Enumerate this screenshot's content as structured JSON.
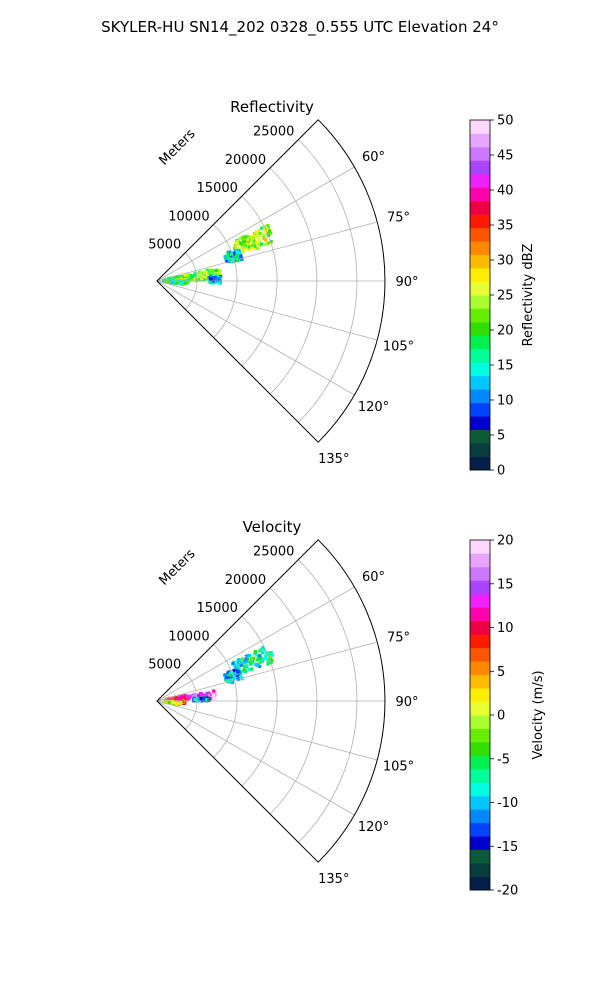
{
  "figure": {
    "suptitle": "SKYLER-HU  SN14_202  0328_0.555 UTC Elevation 24°"
  },
  "chart_data": [
    {
      "type": "heatmap",
      "projection": "polar-sector",
      "title": "Reflectivity",
      "range_label": "Meters",
      "range_ticks": [
        5000,
        10000,
        15000,
        20000,
        25000
      ],
      "azimuth_ticks": [
        "60°",
        "75°",
        "90°",
        "105°",
        "120°",
        "135°"
      ],
      "azimuth_range_deg": [
        45,
        135
      ],
      "range_max_m": 28500,
      "grid": true,
      "colorbar": {
        "label": "Reflectivity dBZ",
        "min": 0,
        "max": 50,
        "ticks": [
          0,
          5,
          10,
          15,
          20,
          25,
          30,
          35,
          40,
          45,
          50
        ],
        "colors": [
          "#04204a",
          "#073d3d",
          "#0c5a37",
          "#0000cc",
          "#0044ff",
          "#0088ff",
          "#00c8ff",
          "#00ffe0",
          "#00ff99",
          "#00f050",
          "#33dd00",
          "#66ee00",
          "#aaff33",
          "#e5ff33",
          "#ffee00",
          "#ffbb00",
          "#ff8800",
          "#ff5500",
          "#ff1a00",
          "#ee0044",
          "#ff00aa",
          "#ee22ff",
          "#aa44ff",
          "#cc77ff",
          "#e6a6ff",
          "#ffd6ff"
        ]
      },
      "echo_regions": [
        {
          "az_deg": [
            63,
            72
          ],
          "range_m": [
            10500,
            15500
          ],
          "dominant_dbz": 24
        },
        {
          "az_deg": [
            68,
            76
          ],
          "range_m": [
            9000,
            11000
          ],
          "dominant_dbz": 14
        },
        {
          "az_deg": [
            78,
            90
          ],
          "range_m": [
            1000,
            8000
          ],
          "dominant_dbz": 22
        },
        {
          "az_deg": [
            86,
            92
          ],
          "range_m": [
            6500,
            8000
          ],
          "dominant_dbz": 12
        },
        {
          "az_deg": [
            90,
            97
          ],
          "range_m": [
            800,
            4000
          ],
          "dominant_dbz": 17
        }
      ]
    },
    {
      "type": "heatmap",
      "projection": "polar-sector",
      "title": "Velocity",
      "range_label": "Meters",
      "range_ticks": [
        5000,
        10000,
        15000,
        20000,
        25000
      ],
      "azimuth_ticks": [
        "60°",
        "75°",
        "90°",
        "105°",
        "120°",
        "135°"
      ],
      "azimuth_range_deg": [
        45,
        135
      ],
      "range_max_m": 28500,
      "grid": true,
      "colorbar": {
        "label": "Velocity (m/s)",
        "min": -20,
        "max": 20,
        "ticks": [
          -20,
          -15,
          -10,
          -5,
          0,
          5,
          10,
          15,
          20
        ],
        "colors": [
          "#04204a",
          "#073d3d",
          "#0c5a37",
          "#0000cc",
          "#0044ff",
          "#0088ff",
          "#00c8ff",
          "#00ffe0",
          "#00ff99",
          "#00f050",
          "#33dd00",
          "#66ee00",
          "#aaff33",
          "#e5ff33",
          "#ffee00",
          "#ffbb00",
          "#ff8800",
          "#ff5500",
          "#ff1a00",
          "#ee0044",
          "#ff00aa",
          "#ee22ff",
          "#aa44ff",
          "#cc77ff",
          "#e6a6ff",
          "#ffd6ff"
        ]
      },
      "echo_regions": [
        {
          "az_deg": [
            63,
            72
          ],
          "range_m": [
            10500,
            15500
          ],
          "dominant_ms": -7
        },
        {
          "az_deg": [
            68,
            76
          ],
          "range_m": [
            9000,
            11000
          ],
          "dominant_ms": -10
        },
        {
          "az_deg": [
            78,
            86
          ],
          "range_m": [
            1000,
            4000
          ],
          "dominant_ms": 10
        },
        {
          "az_deg": [
            80,
            88
          ],
          "range_m": [
            4000,
            7500
          ],
          "dominant_ms": 16
        },
        {
          "az_deg": [
            86,
            90
          ],
          "range_m": [
            4500,
            6500
          ],
          "dominant_ms": -12
        },
        {
          "az_deg": [
            90,
            95
          ],
          "range_m": [
            2500,
            3500
          ],
          "dominant_ms": 9
        },
        {
          "az_deg": [
            92,
            100
          ],
          "range_m": [
            800,
            3000
          ],
          "dominant_ms": 0
        }
      ]
    }
  ]
}
